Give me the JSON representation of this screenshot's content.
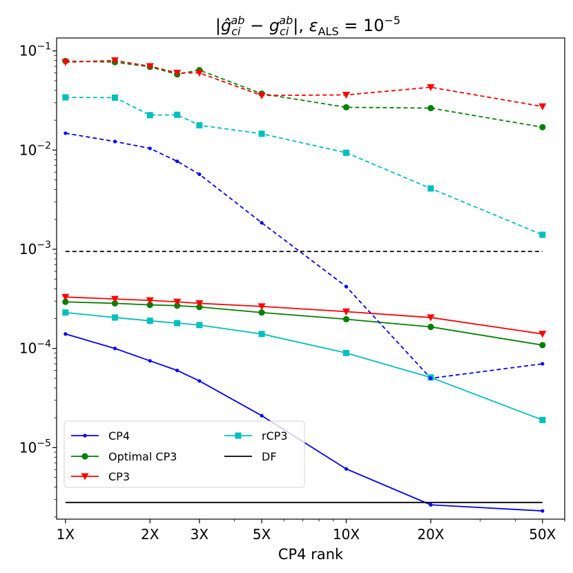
{
  "chart_data": {
    "type": "line",
    "title": "|ĝ_ci^ab − g_ci^ab|, ε_ALS = 10^−5",
    "xlabel": "CP4 rank",
    "ylabel": "",
    "xscale": "log",
    "yscale": "log",
    "xlim": [
      0.93,
      60
    ],
    "ylim": [
      1.9e-06,
      0.135
    ],
    "xticks": [
      {
        "value": 1,
        "label": "1X"
      },
      {
        "value": 2,
        "label": "2X"
      },
      {
        "value": 3,
        "label": "3X"
      },
      {
        "value": 5,
        "label": "5X"
      },
      {
        "value": 10,
        "label": "10X"
      },
      {
        "value": 20,
        "label": "20X"
      },
      {
        "value": 50,
        "label": "50X"
      }
    ],
    "yticks": [
      {
        "value": 1e-05,
        "base": "10",
        "exp": "−5"
      },
      {
        "value": 0.0001,
        "base": "10",
        "exp": "−4"
      },
      {
        "value": 0.001,
        "base": "10",
        "exp": "−3"
      },
      {
        "value": 0.01,
        "base": "10",
        "exp": "−2"
      },
      {
        "value": 0.1,
        "base": "10",
        "exp": "−1"
      }
    ],
    "grid": false,
    "legend": "lower-left",
    "legend_entries": [
      {
        "series": "cp4_solid",
        "label": "CP4"
      },
      {
        "series": "optcp3_solid",
        "label": "Optimal CP3"
      },
      {
        "series": "cp3_solid",
        "label": "CP3"
      },
      {
        "series": "rcp3_solid",
        "label": "rCP3"
      },
      {
        "series": "df_solid",
        "label": "DF"
      }
    ],
    "series": [
      {
        "id": "cp4_solid",
        "color": "#0000ff",
        "marker": "dot",
        "dash": "solid",
        "x": [
          1,
          1.5,
          2,
          2.5,
          3,
          5,
          10,
          20,
          50
        ],
        "y": [
          0.00014,
          0.0001,
          7.5e-05,
          6e-05,
          4.7e-05,
          2.1e-05,
          6.1e-06,
          2.65e-06,
          2.3e-06
        ]
      },
      {
        "id": "optcp3_solid",
        "color": "#008000",
        "marker": "circle",
        "dash": "solid",
        "x": [
          1,
          1.5,
          2,
          2.5,
          3,
          5,
          10,
          20,
          50
        ],
        "y": [
          0.000295,
          0.000285,
          0.000275,
          0.00027,
          0.000262,
          0.00023,
          0.000197,
          0.000165,
          0.000108
        ]
      },
      {
        "id": "cp3_solid",
        "color": "#ff0000",
        "marker": "triangle-down",
        "dash": "solid",
        "x": [
          1,
          1.5,
          2,
          2.5,
          3,
          5,
          10,
          20,
          50
        ],
        "y": [
          0.00033,
          0.000315,
          0.000305,
          0.000295,
          0.000285,
          0.000265,
          0.000235,
          0.000205,
          0.00014
        ]
      },
      {
        "id": "rcp3_solid",
        "color": "#00bfbf",
        "marker": "square",
        "dash": "solid",
        "x": [
          1,
          1.5,
          2,
          2.5,
          3,
          5,
          10,
          20,
          50
        ],
        "y": [
          0.00023,
          0.000205,
          0.00019,
          0.00018,
          0.000172,
          0.00014,
          9e-05,
          5.1e-05,
          1.9e-05
        ]
      },
      {
        "id": "df_solid",
        "color": "#000000",
        "marker": "none",
        "dash": "solid",
        "x": [
          1,
          50
        ],
        "y": [
          2.8e-06,
          2.8e-06
        ]
      },
      {
        "id": "cp4_dashed",
        "color": "#0000ff",
        "marker": "dot",
        "dash": "dashed",
        "x": [
          1,
          1.5,
          2,
          2.5,
          3,
          5,
          10,
          20,
          50
        ],
        "y": [
          0.0148,
          0.0122,
          0.0104,
          0.0077,
          0.0057,
          0.00185,
          0.00042,
          5e-05,
          7e-05
        ]
      },
      {
        "id": "optcp3_dashed",
        "color": "#008000",
        "marker": "circle",
        "dash": "dashed",
        "x": [
          1,
          1.5,
          2,
          2.5,
          3,
          5,
          10,
          20,
          50
        ],
        "y": [
          0.079,
          0.077,
          0.069,
          0.058,
          0.064,
          0.037,
          0.027,
          0.0265,
          0.017
        ]
      },
      {
        "id": "cp3_dashed",
        "color": "#ff0000",
        "marker": "triangle-down",
        "dash": "dashed",
        "x": [
          1,
          1.5,
          2,
          2.5,
          3,
          5,
          10,
          20,
          50
        ],
        "y": [
          0.077,
          0.08,
          0.07,
          0.06,
          0.06,
          0.0355,
          0.036,
          0.043,
          0.0275
        ]
      },
      {
        "id": "rcp3_dashed",
        "color": "#00bfbf",
        "marker": "square",
        "dash": "dashed",
        "x": [
          1,
          1.5,
          2,
          2.5,
          3,
          5,
          10,
          20,
          50
        ],
        "y": [
          0.034,
          0.0338,
          0.0225,
          0.0227,
          0.0178,
          0.0146,
          0.0094,
          0.0041,
          0.0014
        ]
      },
      {
        "id": "df_dashed",
        "color": "#000000",
        "marker": "none",
        "dash": "dashed",
        "x": [
          1,
          50
        ],
        "y": [
          0.00095,
          0.00095
        ]
      }
    ]
  }
}
